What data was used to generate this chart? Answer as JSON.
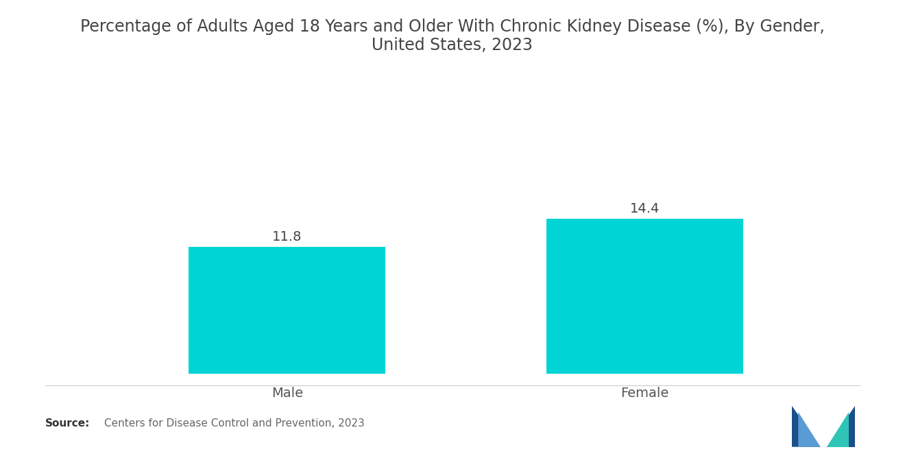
{
  "title": "Percentage of Adults Aged 18 Years and Older With Chronic Kidney Disease (%), By Gender,\nUnited States, 2023",
  "categories": [
    "Male",
    "Female"
  ],
  "values": [
    11.8,
    14.4
  ],
  "bar_color": "#00D4D4",
  "value_labels": [
    "11.8",
    "14.4"
  ],
  "source_text": "Centers for Disease Control and Prevention, 2023",
  "source_label": "Source:",
  "background_color": "#ffffff",
  "ylim": [
    0,
    22
  ],
  "bar_width": 0.55,
  "title_fontsize": 17,
  "label_fontsize": 14,
  "value_fontsize": 14,
  "source_fontsize": 11
}
